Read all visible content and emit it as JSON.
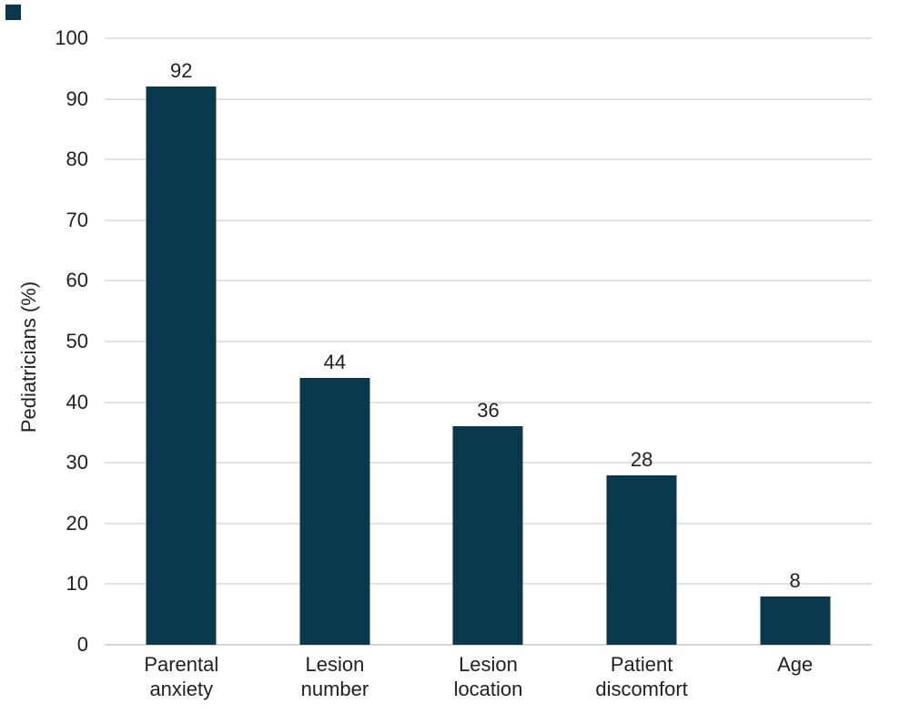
{
  "page": {
    "background": "#ffffff"
  },
  "decoration": {
    "corner_square": {
      "color": "#0a394e"
    }
  },
  "chart_data": {
    "type": "bar",
    "title": "",
    "xlabel": "",
    "ylabel": "Pediatricians (%)",
    "categories": [
      "Parental anxiety",
      "Lesion number",
      "Lesion location",
      "Patient discomfort",
      "Age"
    ],
    "category_lines": [
      [
        "Parental",
        "anxiety"
      ],
      [
        "Lesion",
        "number"
      ],
      [
        "Lesion",
        "location"
      ],
      [
        "Patient",
        "discomfort"
      ],
      [
        "Age"
      ]
    ],
    "values": [
      92,
      44,
      36,
      28,
      8
    ],
    "data_labels": [
      "92",
      "44",
      "36",
      "28",
      "8"
    ],
    "ylim": [
      0,
      100
    ],
    "yticks": [
      0,
      10,
      20,
      30,
      40,
      50,
      60,
      70,
      80,
      90,
      100
    ],
    "grid": true,
    "legend_position": "none",
    "bar_color": "#0a394e",
    "gridline_color": "#e2e2e2",
    "axis_line_color": "#d6d6d6",
    "text_color": "#212121"
  }
}
